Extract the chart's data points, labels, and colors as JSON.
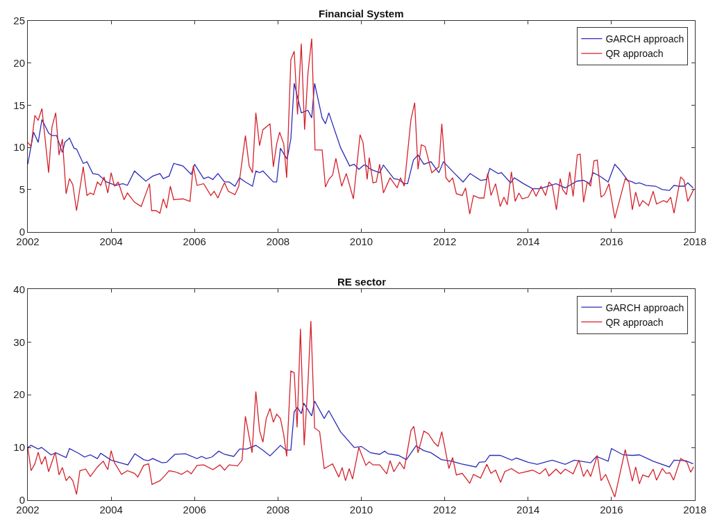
{
  "chart_data": [
    {
      "type": "line",
      "title": "Financial System",
      "xlim": [
        2002,
        2018
      ],
      "xticks": [
        2002,
        2004,
        2006,
        2008,
        2010,
        2012,
        2014,
        2016,
        2018
      ],
      "ylim": [
        0,
        25
      ],
      "yticks": [
        0,
        5,
        10,
        15,
        20,
        25
      ],
      "legend": "top right",
      "line_style": "solid",
      "marker": "none",
      "series": [
        {
          "name": "GARCH approach",
          "color": "#2a2ab8",
          "x": [
            2002,
            2002.14,
            2002.25,
            2002.34,
            2002.5,
            2002.58,
            2002.69,
            2002.83,
            2002.89,
            2003.0,
            2003.11,
            2003.17,
            2003.33,
            2003.42,
            2003.56,
            2003.69,
            2003.89,
            2004.11,
            2004.28,
            2004.39,
            2004.56,
            2004.83,
            2005.0,
            2005.17,
            2005.25,
            2005.39,
            2005.5,
            2005.72,
            2005.92,
            2006.0,
            2006.22,
            2006.33,
            2006.44,
            2006.56,
            2006.72,
            2006.83,
            2006.97,
            2007.08,
            2007.22,
            2007.39,
            2007.47,
            2007.56,
            2007.64,
            2007.89,
            2007.97,
            2008.06,
            2008.22,
            2008.31,
            2008.39,
            2008.56,
            2008.72,
            2008.81,
            2008.88,
            2009.06,
            2009.14,
            2009.22,
            2009.5,
            2009.72,
            2009.83,
            2009.94,
            2010.06,
            2010.11,
            2010.22,
            2010.44,
            2010.53,
            2010.78,
            2010.89,
            2011.03,
            2011.11,
            2011.25,
            2011.36,
            2011.5,
            2011.67,
            2011.86,
            2011.97,
            2012.22,
            2012.44,
            2012.61,
            2012.86,
            2013.0,
            2013.08,
            2013.28,
            2013.36,
            2013.58,
            2013.67,
            2013.89,
            2014.11,
            2014.28,
            2014.47,
            2014.67,
            2014.89,
            2015.17,
            2015.33,
            2015.47,
            2015.56,
            2015.72,
            2015.92,
            2016.08,
            2016.19,
            2016.39,
            2016.5,
            2016.58,
            2016.67,
            2016.83,
            2017.06,
            2017.22,
            2017.39,
            2017.5,
            2017.61,
            2017.75,
            2017.83,
            2017.96
          ],
          "values": [
            8.0,
            11.8,
            10.6,
            13.3,
            11.7,
            11.4,
            11.4,
            9.4,
            10.6,
            11.1,
            9.9,
            9.8,
            8.1,
            8.3,
            6.9,
            6.8,
            5.9,
            5.5,
            5.7,
            5.5,
            7.2,
            6.0,
            6.6,
            6.9,
            6.3,
            6.6,
            8.1,
            7.8,
            6.8,
            8.0,
            6.3,
            6.5,
            6.2,
            6.9,
            5.9,
            5.9,
            5.4,
            6.4,
            5.9,
            5.4,
            7.2,
            7.0,
            7.2,
            5.9,
            5.9,
            9.9,
            8.6,
            11.0,
            17.6,
            14.1,
            14.4,
            13.5,
            17.6,
            13.5,
            12.8,
            14.1,
            10.0,
            7.8,
            8.0,
            7.4,
            7.9,
            7.9,
            7.4,
            7.0,
            7.9,
            6.3,
            6.2,
            5.7,
            5.7,
            8.5,
            9.1,
            8.0,
            8.3,
            7.0,
            8.3,
            7.0,
            5.9,
            6.9,
            6.1,
            6.2,
            7.5,
            6.9,
            7.0,
            5.8,
            6.4,
            5.7,
            5.1,
            5.1,
            5.4,
            5.7,
            5.2,
            6.0,
            6.1,
            5.7,
            7.0,
            6.6,
            5.9,
            8.0,
            7.4,
            6.1,
            5.9,
            5.7,
            5.8,
            5.5,
            5.4,
            5.0,
            4.9,
            5.5,
            5.4,
            5.4,
            5.8,
            5.2
          ]
        },
        {
          "name": "QR approach",
          "color": "#d4202a",
          "x": [
            2002,
            2002.08,
            2002.17,
            2002.25,
            2002.34,
            2002.5,
            2002.58,
            2002.67,
            2002.75,
            2002.83,
            2002.92,
            2003.0,
            2003.08,
            2003.17,
            2003.33,
            2003.42,
            2003.5,
            2003.58,
            2003.67,
            2003.75,
            2003.83,
            2003.92,
            2004.0,
            2004.08,
            2004.17,
            2004.31,
            2004.39,
            2004.56,
            2004.72,
            2004.92,
            2004.97,
            2005.08,
            2005.17,
            2005.25,
            2005.33,
            2005.42,
            2005.5,
            2005.72,
            2005.89,
            2005.97,
            2006.06,
            2006.22,
            2006.39,
            2006.47,
            2006.56,
            2006.67,
            2006.72,
            2006.81,
            2006.97,
            2007.06,
            2007.22,
            2007.31,
            2007.39,
            2007.47,
            2007.56,
            2007.64,
            2007.81,
            2007.89,
            2007.97,
            2008.04,
            2008.14,
            2008.21,
            2008.31,
            2008.39,
            2008.47,
            2008.56,
            2008.64,
            2008.72,
            2008.81,
            2008.89,
            2009.06,
            2009.14,
            2009.22,
            2009.31,
            2009.39,
            2009.53,
            2009.64,
            2009.81,
            2009.97,
            2010.04,
            2010.14,
            2010.19,
            2010.28,
            2010.36,
            2010.44,
            2010.53,
            2010.69,
            2010.86,
            2010.94,
            2011.03,
            2011.19,
            2011.28,
            2011.36,
            2011.44,
            2011.53,
            2011.69,
            2011.86,
            2011.93,
            2012.03,
            2012.11,
            2012.19,
            2012.28,
            2012.42,
            2012.5,
            2012.6,
            2012.69,
            2012.83,
            2012.94,
            2013.03,
            2013.11,
            2013.22,
            2013.33,
            2013.42,
            2013.5,
            2013.6,
            2013.69,
            2013.78,
            2013.86,
            2014.0,
            2014.11,
            2014.19,
            2014.31,
            2014.42,
            2014.5,
            2014.58,
            2014.68,
            2014.77,
            2014.83,
            2014.92,
            2015.0,
            2015.08,
            2015.18,
            2015.25,
            2015.33,
            2015.42,
            2015.5,
            2015.58,
            2015.66,
            2015.75,
            2015.83,
            2015.94,
            2016.08,
            2016.33,
            2016.42,
            2016.5,
            2016.58,
            2016.67,
            2016.75,
            2016.89,
            2017.0,
            2017.08,
            2017.25,
            2017.33,
            2017.42,
            2017.5,
            2017.66,
            2017.74,
            2017.83,
            2017.97
          ],
          "values": [
            10.6,
            10.1,
            13.8,
            13.2,
            14.6,
            7.0,
            12.4,
            14.1,
            9.1,
            11.0,
            4.5,
            6.3,
            5.6,
            2.5,
            7.7,
            4.3,
            4.6,
            4.4,
            5.9,
            5.5,
            6.5,
            4.6,
            7.0,
            5.4,
            5.9,
            3.8,
            4.6,
            3.5,
            3.0,
            5.7,
            2.5,
            2.5,
            2.2,
            3.9,
            2.8,
            5.4,
            3.8,
            3.9,
            3.6,
            7.8,
            5.5,
            5.7,
            4.3,
            4.8,
            4.0,
            5.3,
            5.8,
            4.8,
            4.4,
            5.4,
            11.4,
            7.8,
            7.0,
            14.1,
            10.2,
            12.1,
            12.8,
            7.7,
            10.4,
            11.8,
            10.4,
            6.4,
            20.4,
            21.4,
            13.9,
            22.3,
            12.1,
            18.8,
            22.9,
            9.7,
            9.7,
            5.3,
            6.2,
            6.7,
            8.7,
            5.4,
            6.9,
            3.9,
            11.5,
            10.6,
            6.2,
            8.8,
            5.8,
            5.9,
            8.0,
            4.6,
            6.4,
            5.2,
            6.4,
            5.4,
            13.3,
            15.3,
            7.4,
            10.3,
            10.1,
            7.0,
            7.7,
            12.8,
            6.4,
            5.9,
            6.4,
            4.5,
            4.3,
            5.2,
            2.1,
            4.3,
            4.0,
            4.0,
            6.9,
            4.3,
            5.7,
            3.0,
            4.1,
            3.2,
            7.1,
            3.6,
            4.6,
            3.9,
            4.1,
            5.1,
            4.2,
            5.4,
            4.3,
            5.9,
            5.5,
            2.6,
            6.3,
            5.0,
            4.4,
            7.1,
            4.2,
            9.1,
            9.2,
            3.5,
            5.9,
            5.4,
            8.4,
            8.5,
            4.1,
            4.4,
            5.7,
            1.6,
            6.3,
            5.9,
            2.6,
            4.7,
            3.0,
            3.7,
            3.1,
            4.8,
            3.3,
            3.7,
            3.5,
            4.1,
            2.2,
            6.5,
            6.1,
            3.6,
            5.0
          ]
        }
      ]
    },
    {
      "type": "line",
      "title": "RE sector",
      "xlim": [
        2002,
        2018
      ],
      "xticks": [
        2002,
        2004,
        2006,
        2008,
        2010,
        2012,
        2014,
        2016,
        2018
      ],
      "ylim": [
        0,
        40
      ],
      "yticks": [
        0,
        10,
        20,
        30,
        40
      ],
      "legend": "top right",
      "line_style": "solid",
      "marker": "none",
      "series": [
        {
          "name": "GARCH approach",
          "color": "#2a2ab8",
          "x": [
            2002,
            2002.08,
            2002.25,
            2002.33,
            2002.56,
            2002.67,
            2002.92,
            2003.0,
            2003.22,
            2003.36,
            2003.5,
            2003.67,
            2003.75,
            2004.0,
            2004.22,
            2004.4,
            2004.57,
            2004.78,
            2004.89,
            2005.0,
            2005.22,
            2005.33,
            2005.53,
            2005.78,
            2006.06,
            2006.17,
            2006.28,
            2006.42,
            2006.58,
            2006.72,
            2006.94,
            2007.08,
            2007.25,
            2007.47,
            2007.64,
            2007.81,
            2008.06,
            2008.19,
            2008.31,
            2008.39,
            2008.47,
            2008.56,
            2008.62,
            2008.81,
            2008.88,
            2009.11,
            2009.22,
            2009.5,
            2009.83,
            2010.0,
            2010.22,
            2010.44,
            2010.56,
            2010.64,
            2010.89,
            2011.08,
            2011.31,
            2011.5,
            2011.67,
            2011.92,
            2012.17,
            2012.39,
            2012.75,
            2012.83,
            2012.97,
            2013.08,
            2013.33,
            2013.61,
            2013.72,
            2014.0,
            2014.22,
            2014.44,
            2014.58,
            2014.89,
            2015.11,
            2015.5,
            2015.64,
            2015.92,
            2016.0,
            2016.28,
            2016.5,
            2016.67,
            2017.0,
            2017.39,
            2017.5,
            2017.78,
            2017.96
          ],
          "values": [
            10.0,
            10.4,
            9.7,
            10.0,
            8.6,
            9.0,
            8.1,
            9.8,
            8.9,
            8.2,
            8.6,
            7.9,
            8.9,
            7.6,
            7.1,
            6.7,
            8.8,
            7.7,
            7.5,
            7.9,
            7.1,
            7.2,
            8.7,
            8.8,
            7.9,
            8.3,
            7.9,
            8.2,
            9.3,
            8.7,
            8.3,
            9.7,
            9.7,
            10.4,
            9.5,
            8.4,
            10.4,
            9.5,
            9.5,
            16.8,
            17.6,
            16.4,
            18.4,
            16.0,
            18.8,
            15.5,
            17.0,
            13.0,
            10.0,
            10.2,
            9.0,
            8.7,
            9.3,
            8.8,
            8.5,
            7.7,
            10.3,
            9.4,
            9.0,
            7.7,
            7.4,
            6.9,
            6.3,
            7.2,
            7.3,
            8.5,
            8.5,
            7.6,
            8.0,
            7.2,
            6.8,
            7.3,
            7.6,
            6.8,
            7.6,
            7.1,
            8.3,
            7.4,
            9.8,
            8.6,
            8.5,
            8.6,
            7.4,
            6.3,
            7.6,
            7.5,
            6.9
          ]
        },
        {
          "name": "QR approach",
          "color": "#d4202a",
          "x": [
            2002,
            2002.08,
            2002.17,
            2002.25,
            2002.33,
            2002.42,
            2002.5,
            2002.66,
            2002.75,
            2002.83,
            2002.92,
            2003.0,
            2003.08,
            2003.17,
            2003.25,
            2003.39,
            2003.5,
            2003.67,
            2003.81,
            2003.92,
            2004.0,
            2004.08,
            2004.25,
            2004.39,
            2004.56,
            2004.64,
            2004.78,
            2004.9,
            2004.98,
            2005.17,
            2005.28,
            2005.39,
            2005.53,
            2005.69,
            2005.83,
            2005.92,
            2006.06,
            2006.22,
            2006.44,
            2006.61,
            2006.72,
            2006.83,
            2007.03,
            2007.14,
            2007.22,
            2007.38,
            2007.47,
            2007.56,
            2007.64,
            2007.72,
            2007.81,
            2007.89,
            2007.97,
            2008.06,
            2008.14,
            2008.21,
            2008.31,
            2008.39,
            2008.46,
            2008.54,
            2008.63,
            2008.72,
            2008.79,
            2008.88,
            2009.0,
            2009.11,
            2009.31,
            2009.46,
            2009.54,
            2009.62,
            2009.71,
            2009.79,
            2009.94,
            2010.11,
            2010.19,
            2010.28,
            2010.44,
            2010.61,
            2010.69,
            2010.78,
            2010.92,
            2011.03,
            2011.19,
            2011.26,
            2011.36,
            2011.5,
            2011.61,
            2011.75,
            2011.84,
            2011.93,
            2012.1,
            2012.19,
            2012.28,
            2012.42,
            2012.6,
            2012.69,
            2012.86,
            2013.01,
            2013.11,
            2013.22,
            2013.34,
            2013.44,
            2013.6,
            2013.78,
            2014.11,
            2014.28,
            2014.42,
            2014.5,
            2014.67,
            2014.78,
            2014.89,
            2015.08,
            2015.22,
            2015.33,
            2015.42,
            2015.5,
            2015.66,
            2015.75,
            2015.86,
            2016.08,
            2016.33,
            2016.5,
            2016.58,
            2016.67,
            2016.75,
            2016.89,
            2017.0,
            2017.08,
            2017.22,
            2017.31,
            2017.4,
            2017.49,
            2017.66,
            2017.81,
            2017.9,
            2017.97
          ],
          "values": [
            10.0,
            5.6,
            6.9,
            9.1,
            6.8,
            8.3,
            5.4,
            9.1,
            4.8,
            6.2,
            3.7,
            4.5,
            3.7,
            1.1,
            5.6,
            5.9,
            4.5,
            6.3,
            7.4,
            5.8,
            9.4,
            7.1,
            4.9,
            5.6,
            5.1,
            4.4,
            6.6,
            6.9,
            3.0,
            3.7,
            4.6,
            5.6,
            5.4,
            4.9,
            5.6,
            5.0,
            6.6,
            6.7,
            5.8,
            6.7,
            5.7,
            6.7,
            6.5,
            7.6,
            15.9,
            9.0,
            20.6,
            13.2,
            11.0,
            15.5,
            17.4,
            14.8,
            16.3,
            15.5,
            12.4,
            8.3,
            24.5,
            24.2,
            13.8,
            32.5,
            10.4,
            22.2,
            34.0,
            13.7,
            13.0,
            6.0,
            6.9,
            4.4,
            6.2,
            3.7,
            6.0,
            4.0,
            10.0,
            6.6,
            7.3,
            6.7,
            6.7,
            5.0,
            7.5,
            5.4,
            7.2,
            5.9,
            13.2,
            14.0,
            9.0,
            13.1,
            12.6,
            10.9,
            10.2,
            13.0,
            6.0,
            8.1,
            4.8,
            5.1,
            3.2,
            4.9,
            4.2,
            6.8,
            5.1,
            5.7,
            3.4,
            5.4,
            6.0,
            5.1,
            5.7,
            5.0,
            6.0,
            4.6,
            5.9,
            5.0,
            5.9,
            5.0,
            7.6,
            4.5,
            5.8,
            4.5,
            8.5,
            3.7,
            4.9,
            0.6,
            9.6,
            3.6,
            6.3,
            3.1,
            4.8,
            4.4,
            5.9,
            3.8,
            6.0,
            5.1,
            5.2,
            3.8,
            7.9,
            7.2,
            5.3,
            6.3
          ]
        }
      ]
    }
  ]
}
